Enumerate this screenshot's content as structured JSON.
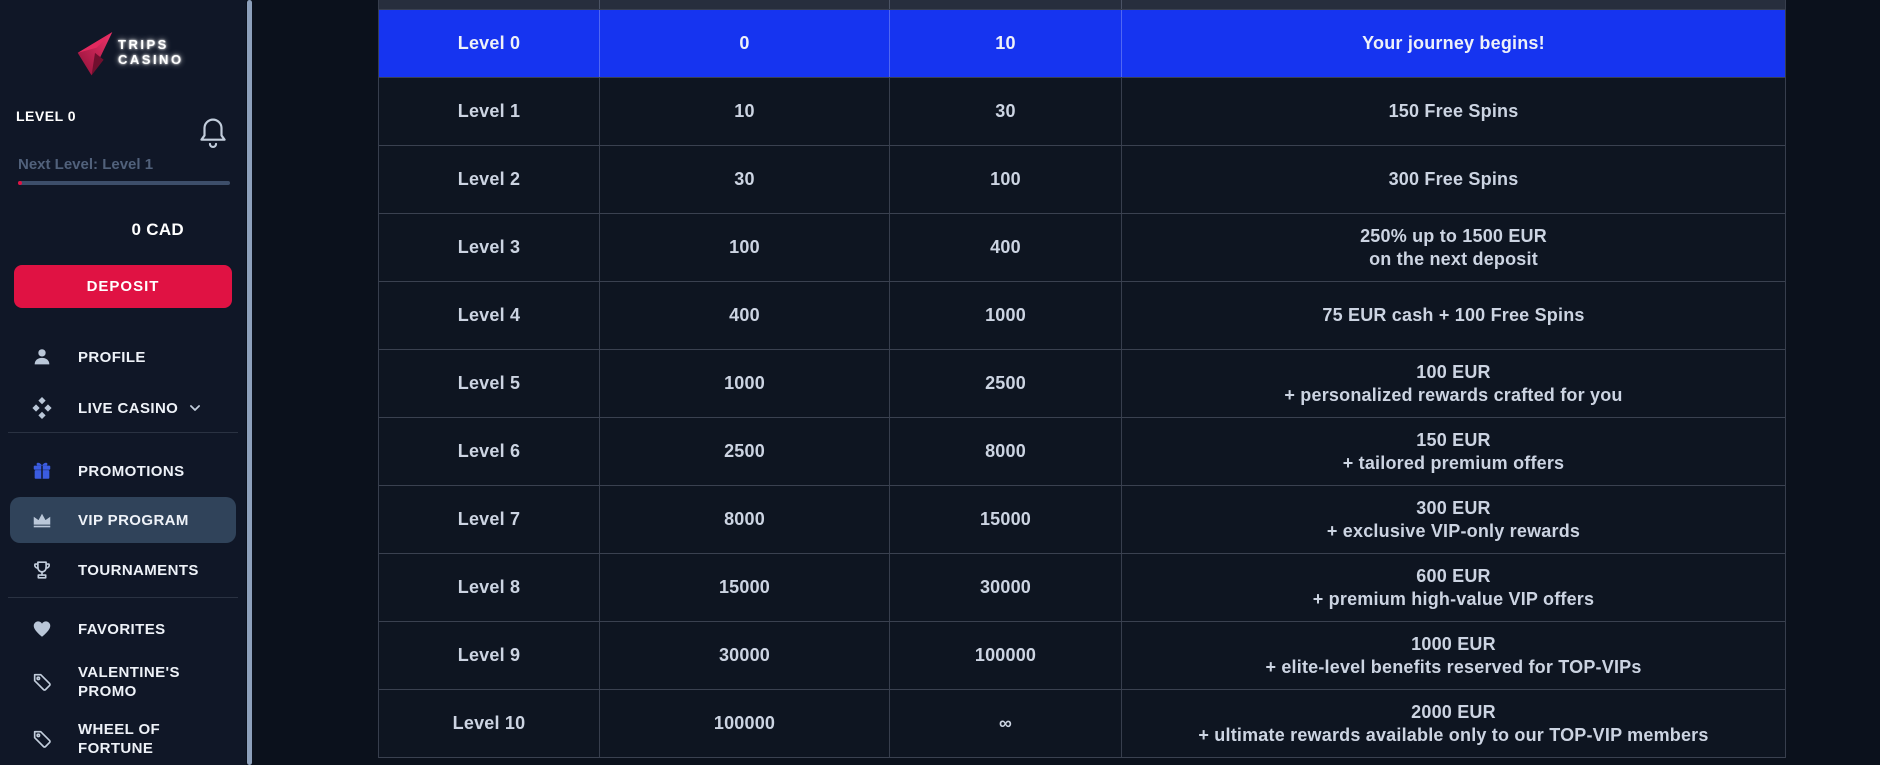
{
  "brand": {
    "line1": "TRIPS",
    "line2": "CASINO"
  },
  "level_panel": {
    "current_level": "LEVEL 0",
    "next_level": "Next Level: Level 1",
    "progress_percent": 2,
    "balance": "0 CAD",
    "deposit_label": "DEPOSIT"
  },
  "sidebar": {
    "items": [
      {
        "label": "PROFILE"
      },
      {
        "label": "LIVE CASINO"
      },
      {
        "label": "PROMOTIONS"
      },
      {
        "label": "VIP PROGRAM",
        "active": true
      },
      {
        "label": "TOURNAMENTS"
      },
      {
        "label": "FAVORITES"
      },
      {
        "label_line1": "VALENTINE'S",
        "label_line2": "PROMO"
      },
      {
        "label_line1": "WHEEL OF",
        "label_line2": "FORTUNE"
      }
    ]
  },
  "colors": {
    "active_row_blue": "#1634f0",
    "deposit_red": "#e01243",
    "active_menu_bg": "#30435a",
    "promotions_icon_blue": "#3b5ce0",
    "row_background": "#0e1521",
    "sidebar_background": "#101727"
  },
  "vip_table": {
    "rows": [
      {
        "level": "Level 0",
        "from": "0",
        "to": "10",
        "reward_line1": "Your journey begins!"
      },
      {
        "level": "Level 1",
        "from": "10",
        "to": "30",
        "reward_line1": "150 Free Spins"
      },
      {
        "level": "Level 2",
        "from": "30",
        "to": "100",
        "reward_line1": "300 Free Spins"
      },
      {
        "level": "Level 3",
        "from": "100",
        "to": "400",
        "reward_line1": "250% up to 1500 EUR",
        "reward_line2": "on the next deposit"
      },
      {
        "level": "Level 4",
        "from": "400",
        "to": "1000",
        "reward_line1": "75 EUR cash + 100 Free Spins"
      },
      {
        "level": "Level 5",
        "from": "1000",
        "to": "2500",
        "reward_line1": "100 EUR",
        "reward_line2": "+ personalized rewards crafted for you"
      },
      {
        "level": "Level 6",
        "from": "2500",
        "to": "8000",
        "reward_line1": "150 EUR",
        "reward_line2": "+ tailored premium offers"
      },
      {
        "level": "Level 7",
        "from": "8000",
        "to": "15000",
        "reward_line1": "300 EUR",
        "reward_line2": "+ exclusive VIP-only rewards"
      },
      {
        "level": "Level 8",
        "from": "15000",
        "to": "30000",
        "reward_line1": "600 EUR",
        "reward_line2": "+ premium high-value VIP offers"
      },
      {
        "level": "Level 9",
        "from": "30000",
        "to": "100000",
        "reward_line1": "1000 EUR",
        "reward_line2": "+ elite-level benefits reserved for TOP-VIPs"
      },
      {
        "level": "Level 10",
        "from": "100000",
        "to": "∞",
        "reward_line1": "2000 EUR",
        "reward_line2": "+ ultimate rewards available only to our TOP-VIP members"
      }
    ]
  }
}
